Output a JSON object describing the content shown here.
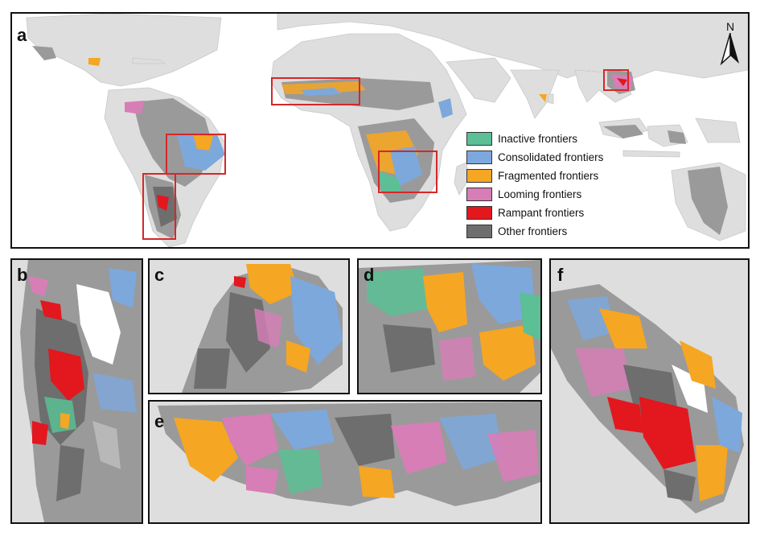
{
  "panels": {
    "a": {
      "label": "a"
    },
    "b": {
      "label": "b"
    },
    "c": {
      "label": "c"
    },
    "d": {
      "label": "d"
    },
    "e": {
      "label": "e"
    },
    "f": {
      "label": "f"
    }
  },
  "north_arrow": {
    "label": "N"
  },
  "legend": {
    "items": [
      {
        "label": "Inactive frontiers",
        "color": "#5cbf95"
      },
      {
        "label": "Consolidated frontiers",
        "color": "#7da8dc"
      },
      {
        "label": "Fragmented frontiers",
        "color": "#f5a623"
      },
      {
        "label": "Looming frontiers",
        "color": "#d77eb6"
      },
      {
        "label": "Rampant frontiers",
        "color": "#e3171e"
      },
      {
        "label": "Other frontiers",
        "color": "#6e6e6e"
      }
    ]
  },
  "colors": {
    "land": "#dedede",
    "forest_grey": "#9a9a9a",
    "inset_box": "#d62728"
  }
}
